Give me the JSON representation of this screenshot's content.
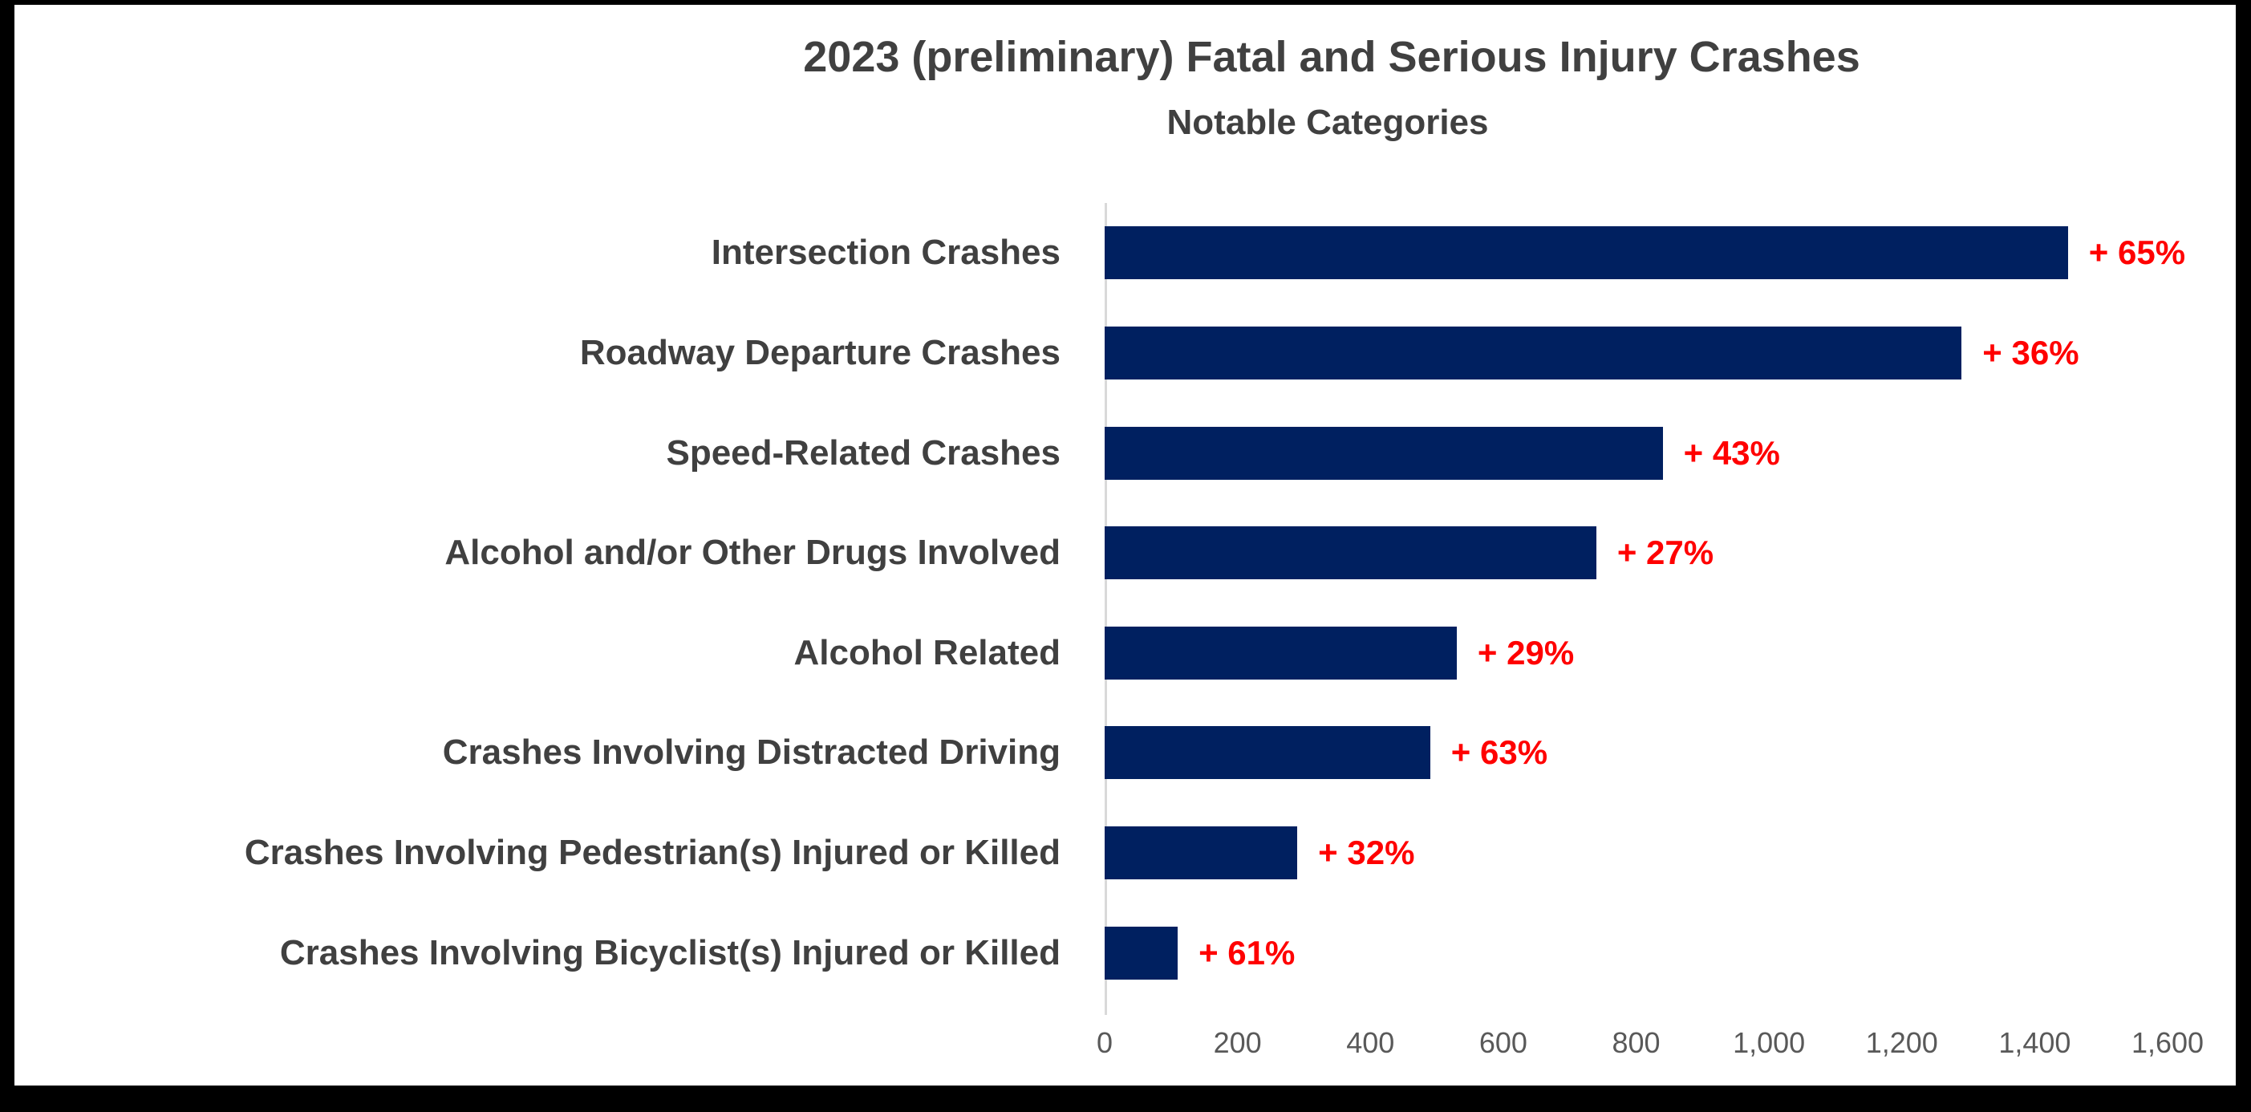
{
  "chart_data": {
    "type": "bar",
    "orientation": "horizontal",
    "title": "2023 (preliminary) Fatal and Serious Injury Crashes",
    "subtitle": "Notable Categories",
    "categories": [
      "Intersection Crashes",
      "Roadway Departure Crashes",
      "Speed-Related Crashes",
      "Alcohol and/or Other Drugs Involved",
      "Alcohol Related",
      "Crashes Involving Distracted Driving",
      "Crashes Involving Pedestrian(s) Injured or Killed",
      "Crashes Involving Bicyclist(s) Injured or Killed"
    ],
    "values": [
      1450,
      1290,
      840,
      740,
      530,
      490,
      290,
      110
    ],
    "bar_labels": [
      "+ 65%",
      "+ 36%",
      "+ 43%",
      "+ 27%",
      "+ 29%",
      "+ 63%",
      "+ 32%",
      "+ 61%"
    ],
    "x_ticks": [
      "0",
      "200",
      "400",
      "600",
      "800",
      "1,000",
      "1,200",
      "1,400",
      "1,600"
    ],
    "x_tick_values": [
      0,
      200,
      400,
      600,
      800,
      1000,
      1200,
      1400,
      1600
    ],
    "xlim": [
      0,
      1600
    ],
    "legend": "none",
    "grid": "off",
    "colors": {
      "bar": "#002060",
      "bar_label": "#FF0000",
      "title": "#404040",
      "category_label": "#404040",
      "tick_label": "#595959",
      "axis_line": "#D9D9D9",
      "frame": "#000000",
      "background": "#FFFFFF"
    }
  }
}
